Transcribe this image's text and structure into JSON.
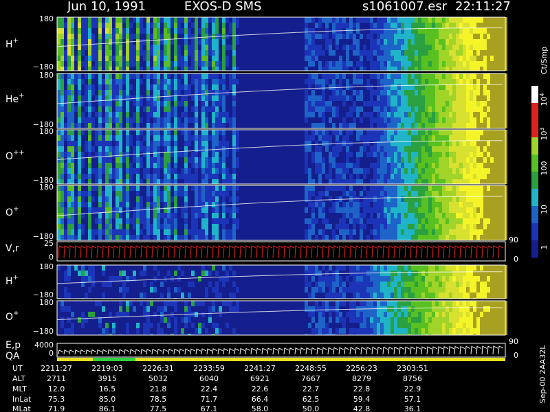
{
  "header": {
    "date": "Jun 10, 1991",
    "instrument": "EXOS-D SMS",
    "file": "s1061007.esr",
    "time": "22:11:27"
  },
  "panels": [
    {
      "ion": "H",
      "charge": "+",
      "top_tick": "180",
      "bottom_tick": "−180"
    },
    {
      "ion": "He",
      "charge": "+",
      "top_tick": "180",
      "bottom_tick": "−180"
    },
    {
      "ion": "O",
      "charge": "++",
      "top_tick": "180",
      "bottom_tick": "−180"
    },
    {
      "ion": "O",
      "charge": "+",
      "top_tick": "180",
      "bottom_tick": "−180"
    },
    {
      "ion": "V,r",
      "charge": "",
      "top_tick": "25",
      "bottom_tick": "0",
      "right_top": "90",
      "right_bottom": "0"
    },
    {
      "ion": "H",
      "charge": "+",
      "top_tick": "180",
      "bottom_tick": "−180"
    },
    {
      "ion": "O",
      "charge": "+",
      "top_tick": "180",
      "bottom_tick": "−180"
    },
    {
      "ion": "E,p",
      "charge": "",
      "top_tick": "4000",
      "bottom_tick": "0",
      "right_top": "90",
      "right_bottom": "0"
    }
  ],
  "qa_label": "QA",
  "colorbar": {
    "unit": "Ct/Smp",
    "labels": [
      {
        "base": "10",
        "exp": "4"
      },
      {
        "base": "10",
        "exp": "3"
      },
      {
        "base": "100",
        "exp": ""
      },
      {
        "base": "10",
        "exp": ""
      },
      {
        "base": "1",
        "exp": ""
      }
    ]
  },
  "table": {
    "rows": [
      {
        "label": "UT",
        "values": [
          "2211:27",
          "2219:03",
          "2226:31",
          "2233:59",
          "2241:27",
          "2248:55",
          "2256:23",
          "2303:51"
        ]
      },
      {
        "label": "ALT",
        "values": [
          "2711",
          "3915",
          "5032",
          "6040",
          "6921",
          "7667",
          "8279",
          "8756"
        ]
      },
      {
        "label": "MLT",
        "values": [
          "12.0",
          "16.5",
          "21.8",
          "22.4",
          "22.6",
          "22.7",
          "22.8",
          "22.9"
        ]
      },
      {
        "label": "InLat",
        "values": [
          "75.3",
          "85.0",
          "78.5",
          "71.7",
          "66.4",
          "62.5",
          "59.4",
          "57.1"
        ]
      },
      {
        "label": "MLat",
        "values": [
          "71.9",
          "86.1",
          "77.5",
          "67.1",
          "58.0",
          "50.0",
          "42.8",
          "36.1"
        ]
      }
    ]
  },
  "footer": "Sep-00 2AA32L"
}
